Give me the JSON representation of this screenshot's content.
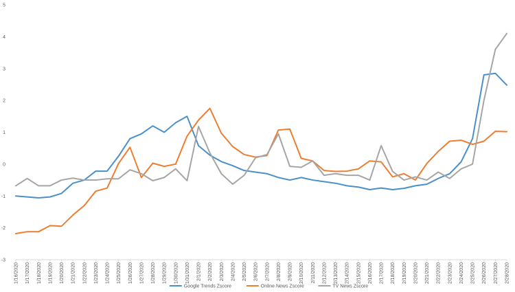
{
  "chart_data": {
    "type": "line",
    "title": "",
    "xlabel": "",
    "ylabel": "",
    "ylim": [
      -3,
      5
    ],
    "yticks": [
      -3,
      -2,
      -1,
      0,
      1,
      2,
      3,
      4,
      5
    ],
    "grid": false,
    "legend_position": "bottom",
    "categories": [
      "1/16/2020",
      "1/17/2020",
      "1/18/2020",
      "1/19/2020",
      "1/20/2020",
      "1/21/2020",
      "1/22/2020",
      "1/23/2020",
      "1/24/2020",
      "1/25/2020",
      "1/26/2020",
      "1/27/2020",
      "1/28/2020",
      "1/29/2020",
      "1/30/2020",
      "1/31/2020",
      "2/1/2020",
      "2/2/2020",
      "2/3/2020",
      "2/4/2020",
      "2/5/2020",
      "2/6/2020",
      "2/7/2020",
      "2/8/2020",
      "2/9/2020",
      "2/10/2020",
      "2/11/2020",
      "2/12/2020",
      "2/13/2020",
      "2/14/2020",
      "2/15/2020",
      "2/16/2020",
      "2/17/2020",
      "2/18/2020",
      "2/19/2020",
      "2/20/2020",
      "2/21/2020",
      "2/22/2020",
      "2/23/2020",
      "2/24/2020",
      "2/25/2020",
      "2/26/2020",
      "2/27/2020",
      "2/28/2020"
    ],
    "series": [
      {
        "name": "Google Trends Zscore",
        "color": "#4a8fc9",
        "values": [
          -1.0,
          -1.03,
          -1.06,
          -1.03,
          -0.92,
          -0.6,
          -0.5,
          -0.22,
          -0.22,
          0.25,
          0.8,
          0.95,
          1.2,
          1.0,
          1.3,
          1.5,
          0.58,
          0.28,
          0.08,
          -0.05,
          -0.2,
          -0.25,
          -0.3,
          -0.42,
          -0.5,
          -0.42,
          -0.5,
          -0.55,
          -0.6,
          -0.68,
          -0.72,
          -0.8,
          -0.75,
          -0.8,
          -0.76,
          -0.68,
          -0.63,
          -0.45,
          -0.3,
          0.07,
          0.8,
          2.8,
          2.85,
          2.48
        ]
      },
      {
        "name": "Online News Zscore",
        "color": "#ed7d31",
        "values": [
          -2.18,
          -2.12,
          -2.12,
          -1.93,
          -1.95,
          -1.6,
          -1.3,
          -0.85,
          -0.75,
          0.02,
          0.53,
          -0.42,
          0.03,
          -0.07,
          0.0,
          0.88,
          1.38,
          1.75,
          0.97,
          0.55,
          0.3,
          0.22,
          0.27,
          1.07,
          1.1,
          0.18,
          0.1,
          -0.2,
          -0.23,
          -0.22,
          -0.15,
          0.1,
          0.07,
          -0.4,
          -0.3,
          -0.5,
          0.02,
          0.4,
          0.72,
          0.75,
          0.62,
          0.72,
          1.03,
          1.02
        ]
      },
      {
        "name": "TV News Zscore",
        "color": "#a5a5a5",
        "values": [
          -0.68,
          -0.45,
          -0.68,
          -0.68,
          -0.5,
          -0.44,
          -0.5,
          -0.5,
          -0.46,
          -0.46,
          -0.18,
          -0.3,
          -0.52,
          -0.42,
          -0.15,
          -0.52,
          1.18,
          0.35,
          -0.3,
          -0.63,
          -0.35,
          0.2,
          0.3,
          0.95,
          -0.07,
          -0.1,
          0.1,
          -0.35,
          -0.3,
          -0.35,
          -0.35,
          -0.5,
          0.58,
          -0.23,
          -0.5,
          -0.4,
          -0.5,
          -0.25,
          -0.45,
          -0.15,
          0.0,
          2.0,
          3.6,
          4.1
        ]
      }
    ]
  }
}
